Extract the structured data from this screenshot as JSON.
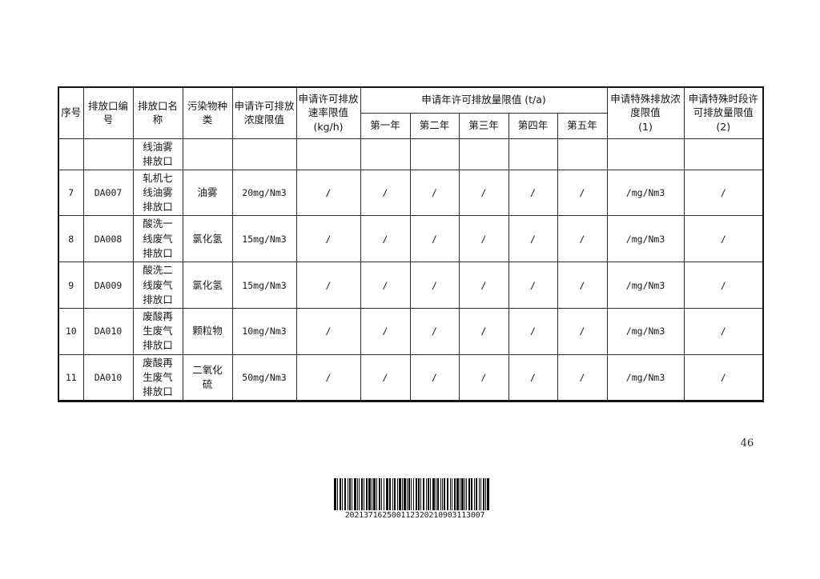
{
  "document": {
    "page_number": "46",
    "barcode": {
      "text": "202137162500112320210903113007"
    }
  },
  "table": {
    "header": {
      "seq": "序号",
      "outlet_code": "排放口编\n号",
      "outlet_name": "排放口名\n称",
      "pollutant_type": "污染物种\n类",
      "conc_limit": "申请许可排放\n浓度限值",
      "rate_limit": "申请许可排放\n速率限值\n(kg/h)",
      "annual_group": "申请年许可排放量限值 (t/a)",
      "years": [
        "第一年",
        "第二年",
        "第三年",
        "第四年",
        "第五年"
      ],
      "special_conc": "申请特殊排放浓\n度限值\n(1)",
      "special_period": "申请特殊时段许\n可排放量限值\n(2)"
    },
    "rows": [
      {
        "seq": "",
        "code": "",
        "name": "线油雾\n排放口",
        "pollutant": "",
        "conc": "",
        "rate": "",
        "y1": "",
        "y2": "",
        "y3": "",
        "y4": "",
        "y5": "",
        "special_conc": "",
        "special_period": ""
      },
      {
        "seq": "7",
        "code": "DA007",
        "name": "轧机七\n线油雾\n排放口",
        "pollutant": "油雾",
        "conc": "20mg/Nm3",
        "rate": "/",
        "y1": "/",
        "y2": "/",
        "y3": "/",
        "y4": "/",
        "y5": "/",
        "special_conc": "/mg/Nm3",
        "special_period": "/"
      },
      {
        "seq": "8",
        "code": "DA008",
        "name": "酸洗一\n线废气\n排放口",
        "pollutant": "氯化氢",
        "conc": "15mg/Nm3",
        "rate": "/",
        "y1": "/",
        "y2": "/",
        "y3": "/",
        "y4": "/",
        "y5": "/",
        "special_conc": "/mg/Nm3",
        "special_period": "/"
      },
      {
        "seq": "9",
        "code": "DA009",
        "name": "酸洗二\n线废气\n排放口",
        "pollutant": "氯化氢",
        "conc": "15mg/Nm3",
        "rate": "/",
        "y1": "/",
        "y2": "/",
        "y3": "/",
        "y4": "/",
        "y5": "/",
        "special_conc": "/mg/Nm3",
        "special_period": "/"
      },
      {
        "seq": "10",
        "code": "DA010",
        "name": "废酸再\n生废气\n排放口",
        "pollutant": "颗粒物",
        "conc": "10mg/Nm3",
        "rate": "/",
        "y1": "/",
        "y2": "/",
        "y3": "/",
        "y4": "/",
        "y5": "/",
        "special_conc": "/mg/Nm3",
        "special_period": "/"
      },
      {
        "seq": "11",
        "code": "DA010",
        "name": "废酸再\n生废气\n排放口",
        "pollutant": "二氧化\n硫",
        "conc": "50mg/Nm3",
        "rate": "/",
        "y1": "/",
        "y2": "/",
        "y3": "/",
        "y4": "/",
        "y5": "/",
        "special_conc": "/mg/Nm3",
        "special_period": "/"
      }
    ]
  }
}
